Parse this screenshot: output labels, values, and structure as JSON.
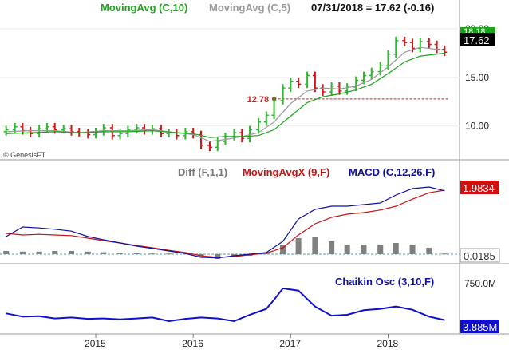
{
  "chart_data": [
    {
      "type": "ohlc",
      "panel": "price",
      "labels": {
        "ma10": "MovingAvg (C,10)",
        "ma5": "MovingAvg (C,5)",
        "quote": "07/31/2018 = 17.62 (-0.16)",
        "watermark": "© GenesisFT",
        "last_price": "17.62",
        "ma_overlap": "18.18",
        "support_level": "12.78"
      },
      "colors": {
        "ma10": "#1aa51a",
        "ma5": "#9a9a9a",
        "up": "#2db82d",
        "down": "#d41515",
        "support": "#d42020"
      },
      "y_ticks": [
        "20.00",
        "15.00",
        "10.00"
      ],
      "ylim": [
        7,
        21
      ],
      "support_value": 12.78,
      "last_value": 17.62,
      "x_ticks": [
        "2015",
        "2016",
        "2017",
        "2018"
      ],
      "x_tick_t": [
        2015.0,
        2016.0,
        2017.0,
        2018.0
      ],
      "xlim": [
        2014.05,
        2018.7
      ],
      "series": [
        {
          "name": "price",
          "t": [
            2014.08,
            2014.17,
            2014.25,
            2014.33,
            2014.42,
            2014.5,
            2014.58,
            2014.67,
            2014.75,
            2014.83,
            2014.92,
            2015.0,
            2015.08,
            2015.17,
            2015.25,
            2015.33,
            2015.42,
            2015.5,
            2015.58,
            2015.67,
            2015.75,
            2015.83,
            2015.92,
            2016.0,
            2016.08,
            2016.17,
            2016.25,
            2016.33,
            2016.42,
            2016.5,
            2016.58,
            2016.67,
            2016.75,
            2016.83,
            2016.92,
            2017.0,
            2017.08,
            2017.17,
            2017.25,
            2017.33,
            2017.42,
            2017.5,
            2017.58,
            2017.67,
            2017.75,
            2017.83,
            2017.92,
            2018.0,
            2018.08,
            2018.17,
            2018.25,
            2018.33,
            2018.42,
            2018.5,
            2018.58
          ],
          "close": [
            9.6,
            9.9,
            9.5,
            9.2,
            9.7,
            9.9,
            9.6,
            9.7,
            9.4,
            9.3,
            9.1,
            9.4,
            9.8,
            9.0,
            9.2,
            9.6,
            9.8,
            9.5,
            9.7,
            9.2,
            9.3,
            9.0,
            9.4,
            9.1,
            8.0,
            7.8,
            8.4,
            8.9,
            9.3,
            8.7,
            9.6,
            10.4,
            11.1,
            12.6,
            13.9,
            14.6,
            14.3,
            15.2,
            13.9,
            13.5,
            14.1,
            13.6,
            14.0,
            14.7,
            15.2,
            15.6,
            16.2,
            17.4,
            18.8,
            18.6,
            18.0,
            18.7,
            18.4,
            17.9,
            17.6
          ]
        },
        {
          "name": "ma10",
          "t": [
            2014.08,
            2014.33,
            2014.58,
            2014.83,
            2015.08,
            2015.33,
            2015.58,
            2015.83,
            2016.0,
            2016.17,
            2016.33,
            2016.5,
            2016.67,
            2016.83,
            2017.0,
            2017.17,
            2017.33,
            2017.5,
            2017.67,
            2017.83,
            2018.0,
            2018.17,
            2018.33,
            2018.58
          ],
          "values": [
            9.2,
            9.3,
            9.4,
            9.3,
            9.4,
            9.4,
            9.5,
            9.3,
            9.2,
            8.8,
            8.9,
            8.9,
            9.0,
            9.6,
            11.0,
            12.4,
            13.0,
            13.3,
            13.7,
            14.3,
            15.4,
            16.6,
            17.2,
            17.5
          ]
        },
        {
          "name": "ma5",
          "t": [
            2014.08,
            2014.33,
            2014.58,
            2014.83,
            2015.08,
            2015.33,
            2015.58,
            2015.83,
            2016.0,
            2016.17,
            2016.33,
            2016.5,
            2016.67,
            2016.83,
            2017.0,
            2017.17,
            2017.33,
            2017.5,
            2017.67,
            2017.83,
            2018.0,
            2018.17,
            2018.33,
            2018.58
          ],
          "values": [
            9.4,
            9.5,
            9.5,
            9.3,
            9.5,
            9.5,
            9.6,
            9.3,
            9.1,
            8.4,
            8.6,
            8.9,
            9.3,
            10.4,
            12.3,
            13.6,
            13.9,
            13.8,
            14.1,
            14.8,
            16.1,
            17.6,
            18.1,
            17.8
          ]
        }
      ]
    },
    {
      "type": "line",
      "panel": "macd",
      "labels": {
        "diff": "Diff (F,1,1)",
        "signal": "MovingAvgX (9,F)",
        "macd": "MACD (C,12,26,F)",
        "macd_last": "1.9834",
        "diff_last": "0.0185"
      },
      "colors": {
        "diff": "#808080",
        "signal": "#cc1111",
        "macd": "#1010a0",
        "zero": "#5a9ea0",
        "label_diff": "#777777",
        "label_signal": "#cc1111",
        "label_macd": "#1010a0"
      },
      "ylim": [
        -0.3,
        2.3
      ],
      "zero_value": 0,
      "x": [
        2014.08,
        2014.25,
        2014.42,
        2014.58,
        2014.75,
        2014.92,
        2015.08,
        2015.25,
        2015.42,
        2015.58,
        2015.75,
        2015.92,
        2016.08,
        2016.25,
        2016.42,
        2016.58,
        2016.75,
        2016.92,
        2017.08,
        2017.25,
        2017.42,
        2017.58,
        2017.75,
        2017.92,
        2018.08,
        2018.25,
        2018.42,
        2018.58
      ],
      "series": [
        {
          "name": "macd",
          "values": [
            0.55,
            0.85,
            0.82,
            0.78,
            0.72,
            0.55,
            0.45,
            0.35,
            0.25,
            0.18,
            0.1,
            0.02,
            -0.1,
            -0.12,
            -0.05,
            0.0,
            0.05,
            0.4,
            1.1,
            1.4,
            1.5,
            1.5,
            1.55,
            1.6,
            1.85,
            2.05,
            2.1,
            1.98
          ]
        },
        {
          "name": "signal",
          "values": [
            0.65,
            0.6,
            0.62,
            0.6,
            0.58,
            0.5,
            0.42,
            0.35,
            0.27,
            0.2,
            0.12,
            0.05,
            -0.05,
            -0.1,
            -0.08,
            -0.02,
            0.03,
            0.2,
            0.6,
            0.95,
            1.15,
            1.25,
            1.3,
            1.38,
            1.5,
            1.72,
            1.92,
            2.0
          ]
        },
        {
          "name": "diff",
          "values": [
            0.1,
            0.08,
            0.08,
            0.1,
            0.1,
            0.08,
            0.06,
            0.04,
            0.03,
            0.02,
            0.02,
            0.02,
            -0.1,
            -0.15,
            -0.08,
            -0.05,
            0.05,
            0.3,
            0.5,
            0.55,
            0.4,
            0.3,
            0.3,
            0.3,
            0.35,
            0.3,
            0.2,
            0.02
          ]
        }
      ]
    },
    {
      "type": "line",
      "panel": "chaikin",
      "labels": {
        "title": "Chaikin Osc (3,10,F)",
        "last": "3.885M",
        "tick": "750.0M"
      },
      "colors": {
        "line": "#1010cc",
        "label": "#1010a0"
      },
      "ylim": [
        -300,
        1100
      ],
      "y_tick_value": 750,
      "x": [
        2014.08,
        2014.25,
        2014.42,
        2014.58,
        2014.75,
        2014.92,
        2015.08,
        2015.25,
        2015.42,
        2015.58,
        2015.75,
        2015.92,
        2016.08,
        2016.25,
        2016.42,
        2016.58,
        2016.75,
        2016.83,
        2016.92,
        2017.08,
        2017.25,
        2017.42,
        2017.58,
        2017.75,
        2017.92,
        2018.08,
        2018.25,
        2018.42,
        2018.58
      ],
      "series": [
        {
          "name": "chaikin",
          "values": [
            150,
            80,
            90,
            40,
            60,
            30,
            40,
            20,
            40,
            60,
            -20,
            30,
            60,
            40,
            -20,
            120,
            250,
            450,
            700,
            650,
            300,
            100,
            120,
            220,
            250,
            300,
            230,
            80,
            4
          ]
        }
      ]
    }
  ]
}
